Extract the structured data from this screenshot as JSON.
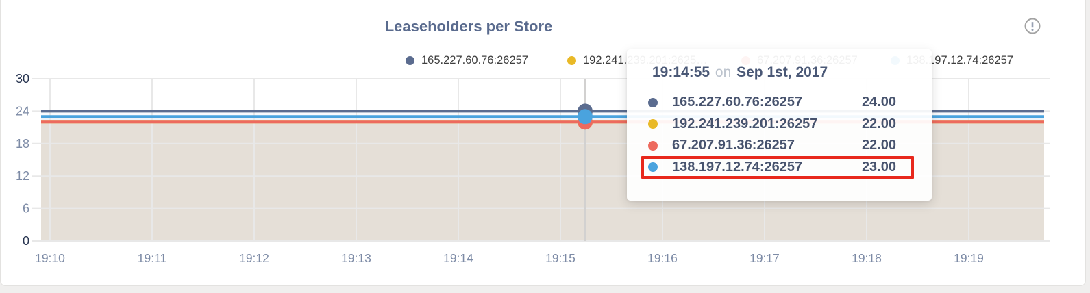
{
  "title": "Leaseholders per Store",
  "info_icon": "exclamation-circle",
  "legend": {
    "items": [
      {
        "label": "165.227.60.76:26257",
        "color": "#5b6c8f"
      },
      {
        "label": "192.241.239.201:2625…",
        "color": "#e9b927"
      },
      {
        "label": "67.207.91.36:26257",
        "color": "#ed6a5e"
      },
      {
        "label": "138.197.12.74:26257",
        "color": "#4aa3de"
      }
    ]
  },
  "tooltip": {
    "time": "19:14:55",
    "conjunction": "on",
    "date": "Sep 1st, 2017",
    "highlight_color": "#e8281c",
    "rows": [
      {
        "label": "165.227.60.76:26257",
        "value": "24.00",
        "color": "#5b6c8f",
        "highlighted": false
      },
      {
        "label": "192.241.239.201:26257",
        "value": "22.00",
        "color": "#e9b927",
        "highlighted": false
      },
      {
        "label": "67.207.91.36:26257",
        "value": "22.00",
        "color": "#ed6a5e",
        "highlighted": false
      },
      {
        "label": "138.197.12.74:26257",
        "value": "23.00",
        "color": "#4aa3de",
        "highlighted": true
      }
    ]
  },
  "chart_data": {
    "type": "line",
    "title": "Leaseholders per Store",
    "xlabel": "",
    "ylabel": "",
    "x_ticks": [
      "19:10",
      "19:11",
      "19:12",
      "19:13",
      "19:14",
      "19:15",
      "19:16",
      "19:17",
      "19:18",
      "19:19"
    ],
    "y_ticks": [
      0,
      6,
      12,
      18,
      24,
      30
    ],
    "ylim": [
      0,
      30
    ],
    "grid": true,
    "legend_position": "top",
    "hovered_point_time": "19:14:55",
    "series": [
      {
        "name": "165.227.60.76:26257",
        "color": "#5b6c8f",
        "value": 24
      },
      {
        "name": "192.241.239.201:26257",
        "color": "#e9b927",
        "value": 22
      },
      {
        "name": "67.207.91.36:26257",
        "color": "#ed6a5e",
        "value": 22
      },
      {
        "name": "138.197.12.74:26257",
        "color": "#4aa3de",
        "value": 23
      }
    ],
    "series_note": "every series is constant (flat line) across the visible time window",
    "bands": [
      {
        "from": 24,
        "to": 23,
        "color": "#fafbfd"
      },
      {
        "from": 23,
        "to": 22,
        "color": "#edf2f8"
      },
      {
        "from": 22,
        "to": 0,
        "color": "#e5dfd7"
      }
    ],
    "colors": {
      "gridline": "#e8e8e8",
      "hover_line": "#d2d1d0",
      "axis_label": "#7d8ba6",
      "axis_label_endpoint": "#26334f"
    }
  }
}
